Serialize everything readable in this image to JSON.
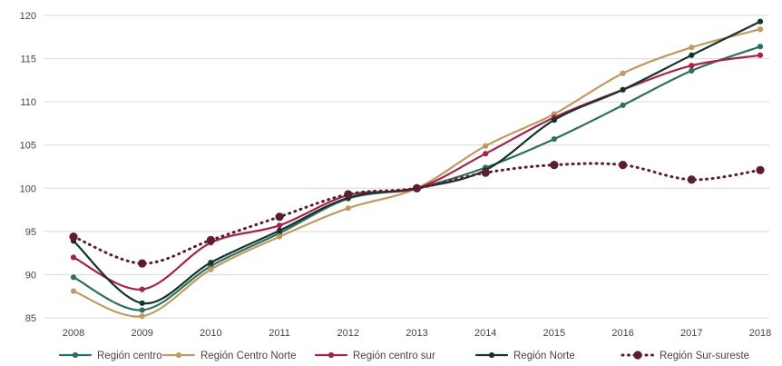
{
  "chart_data": {
    "type": "line",
    "title": "",
    "xlabel": "",
    "ylabel": "",
    "categories": [
      "2008",
      "2009",
      "2010",
      "2011",
      "2012",
      "2013",
      "2014",
      "2015",
      "2016",
      "2017",
      "2018"
    ],
    "ylim": [
      85,
      120
    ],
    "yticks": [
      85,
      90,
      95,
      100,
      105,
      110,
      115,
      120
    ],
    "grid": true,
    "legend_position": "bottom",
    "series": [
      {
        "name": "Región centro",
        "color": "#2e6e5e",
        "style": "solid",
        "values": [
          89.7,
          85.9,
          91.0,
          94.8,
          98.8,
          100.0,
          102.4,
          105.7,
          109.6,
          113.6,
          116.4
        ]
      },
      {
        "name": "Región Centro Norte",
        "color": "#bf9a62",
        "style": "solid",
        "values": [
          88.1,
          85.2,
          90.6,
          94.4,
          97.7,
          100.0,
          104.9,
          108.6,
          113.3,
          116.3,
          118.4
        ]
      },
      {
        "name": "Región centro sur",
        "color": "#a3224e",
        "style": "solid",
        "values": [
          92.0,
          88.3,
          93.7,
          95.7,
          99.2,
          100.0,
          104.0,
          108.2,
          111.4,
          114.2,
          115.4
        ]
      },
      {
        "name": "Región Norte",
        "color": "#16332b",
        "style": "solid",
        "values": [
          93.9,
          86.7,
          91.4,
          95.1,
          98.9,
          100.0,
          102.1,
          107.9,
          111.4,
          115.4,
          119.3
        ]
      },
      {
        "name": "Región Sur-sureste",
        "color": "#5c1d2c",
        "style": "dotted",
        "values": [
          94.4,
          91.3,
          94.0,
          96.7,
          99.3,
          100.0,
          101.8,
          102.7,
          102.7,
          101.0,
          102.1
        ]
      }
    ]
  }
}
